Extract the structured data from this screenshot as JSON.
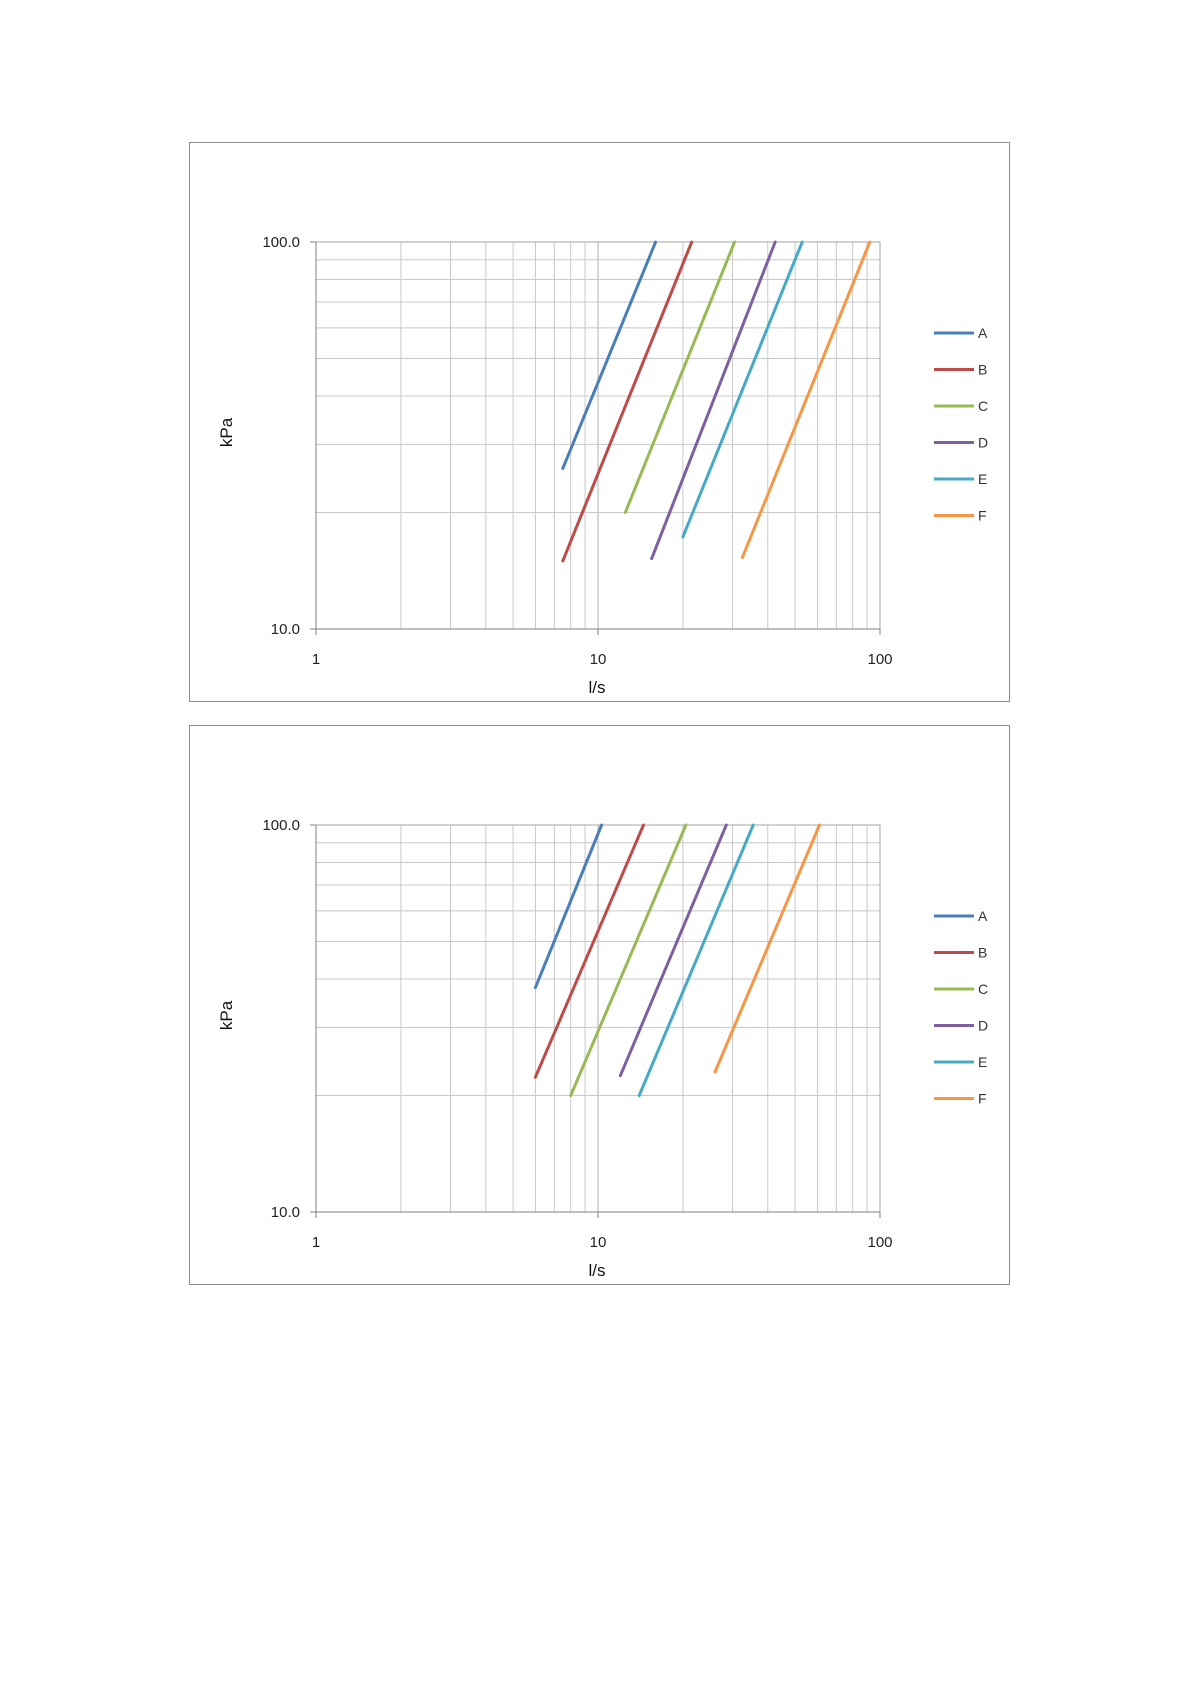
{
  "chart_data": [
    {
      "type": "line",
      "title": "",
      "xlabel": "l/s",
      "ylabel": "kPa",
      "xscale": "log",
      "yscale": "log",
      "xlim": [
        1,
        100
      ],
      "ylim": [
        10,
        100
      ],
      "x_tick_labels": [
        "1",
        "10",
        "100"
      ],
      "y_tick_labels": [
        "10.0",
        "100.0"
      ],
      "grid": true,
      "legend_position": "right",
      "series": [
        {
          "name": "A",
          "color": "#4a7ebb",
          "x": [
            7.5,
            16
          ],
          "y": [
            26,
            100
          ]
        },
        {
          "name": "B",
          "color": "#be4b48",
          "x": [
            7.5,
            21.5
          ],
          "y": [
            15,
            100
          ]
        },
        {
          "name": "C",
          "color": "#98b954",
          "x": [
            12.5,
            30.5
          ],
          "y": [
            20,
            100
          ]
        },
        {
          "name": "D",
          "color": "#7d60a0",
          "x": [
            15.5,
            42.5
          ],
          "y": [
            15.2,
            100
          ]
        },
        {
          "name": "E",
          "color": "#46aac5",
          "x": [
            20,
            53
          ],
          "y": [
            17.3,
            100
          ]
        },
        {
          "name": "F",
          "color": "#f79646",
          "x": [
            32.5,
            92
          ],
          "y": [
            15.3,
            100
          ]
        }
      ]
    },
    {
      "type": "line",
      "title": "",
      "xlabel": "l/s",
      "ylabel": "kPa",
      "xscale": "log",
      "yscale": "log",
      "xlim": [
        1,
        100
      ],
      "ylim": [
        10,
        100
      ],
      "x_tick_labels": [
        "1",
        "10",
        "100"
      ],
      "y_tick_labels": [
        "10.0",
        "100.0"
      ],
      "grid": true,
      "legend_position": "right",
      "series": [
        {
          "name": "A",
          "color": "#4a7ebb",
          "x": [
            6,
            10.3
          ],
          "y": [
            38,
            100
          ]
        },
        {
          "name": "B",
          "color": "#be4b48",
          "x": [
            6,
            14.5
          ],
          "y": [
            22.3,
            100
          ]
        },
        {
          "name": "C",
          "color": "#98b954",
          "x": [
            8,
            20.5
          ],
          "y": [
            20,
            100
          ]
        },
        {
          "name": "D",
          "color": "#7d60a0",
          "x": [
            12,
            28.5
          ],
          "y": [
            22.5,
            100
          ]
        },
        {
          "name": "E",
          "color": "#46aac5",
          "x": [
            14,
            35.5
          ],
          "y": [
            20,
            100
          ]
        },
        {
          "name": "F",
          "color": "#f79646",
          "x": [
            26,
            61
          ],
          "y": [
            23,
            100
          ]
        }
      ]
    }
  ]
}
